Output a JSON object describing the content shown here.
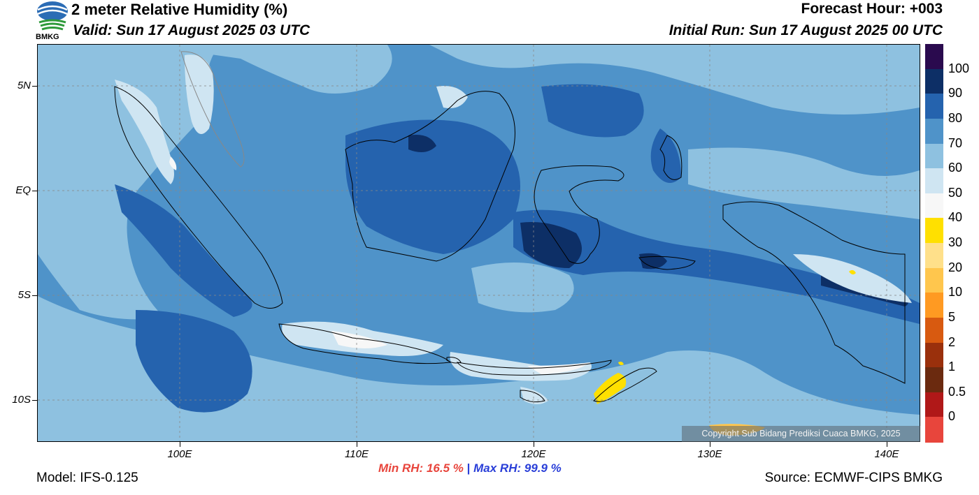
{
  "header": {
    "title": "2 meter Relative Humidity (%)",
    "valid": "Valid: Sun 17 August 2025 03 UTC",
    "forecast_hour": "Forecast Hour: +003",
    "initial_run": "Initial Run: Sun 17 August 2025 00 UTC"
  },
  "logo": {
    "text": "BMKG"
  },
  "axes": {
    "lat_labels": [
      "5N",
      "EQ",
      "5S",
      "10S"
    ],
    "lon_labels": [
      "100E",
      "110E",
      "120E",
      "130E",
      "140E"
    ]
  },
  "stats": {
    "min_label": "Min RH:",
    "min_value": "16.5 %",
    "separator": "|",
    "max_label": "Max RH:",
    "max_value": "99.9 %"
  },
  "footer": {
    "model": "Model: IFS-0.125",
    "source": "Source: ECMWF-CIPS BMKG",
    "copyright": "Copyright Sub Bidang Prediksi Cuaca BMKG, 2025"
  },
  "colorbar": {
    "labels": [
      "100",
      "90",
      "80",
      "70",
      "60",
      "50",
      "40",
      "30",
      "20",
      "10",
      "5",
      "2",
      "1",
      "0.5",
      "0"
    ],
    "colors": [
      "#2a0a4e",
      "#0d2f66",
      "#2563ae",
      "#4f93c9",
      "#8ec1e0",
      "#cfe5f2",
      "#f7f7f7",
      "#ffe000",
      "#ffe08a",
      "#ffc64d",
      "#ff9a22",
      "#d85a10",
      "#9a300c",
      "#6b2a0f",
      "#b01818",
      "#e8453c"
    ]
  }
}
